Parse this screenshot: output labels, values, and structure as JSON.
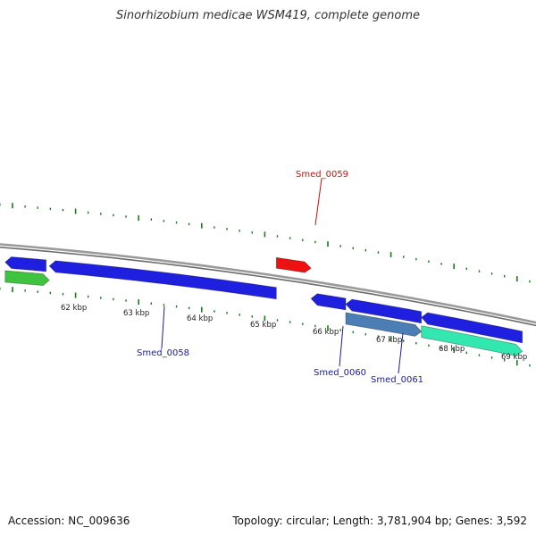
{
  "title": "Sinorhizobium medicae WSM419, complete genome",
  "footer": {
    "accession": "Accession: NC_009636",
    "topology": "Topology: circular; Length: 3,781,904 bp; Genes: 3,592"
  },
  "colors": {
    "backbone": "#8a8a8a",
    "tick": "#1a7a1a",
    "gene_blue": "#1f1fe0",
    "gene_red": "#ee1111",
    "gene_steel": "#4a7eb5",
    "gene_green": "#3ec43e",
    "gene_aqua": "#33e8b0",
    "label_blue": "#1a1aa8",
    "label_red": "#cc1111"
  },
  "kbp_labels": [
    {
      "text": "62 kbp",
      "kbp": 62
    },
    {
      "text": "63 kbp",
      "kbp": 63
    },
    {
      "text": "64 kbp",
      "kbp": 64
    },
    {
      "text": "65 kbp",
      "kbp": 65
    },
    {
      "text": "66 kbp",
      "kbp": 66
    },
    {
      "text": "67 kbp",
      "kbp": 67
    },
    {
      "text": "68 kbp",
      "kbp": 68
    },
    {
      "text": "69 kbp",
      "kbp": 69
    }
  ],
  "genes": [
    {
      "name": "green-left",
      "start_kbp": 61.1,
      "end_kbp": 61.8,
      "strand": "+",
      "track": "inner2",
      "color_key": "gene_green"
    },
    {
      "name": "blue-left",
      "start_kbp": 61.1,
      "end_kbp": 61.75,
      "strand": "-",
      "track": "inner1",
      "color_key": "gene_blue"
    },
    {
      "name": "Smed_0058",
      "start_kbp": 61.8,
      "end_kbp": 65.4,
      "strand": "-",
      "track": "inner1",
      "color_key": "gene_blue"
    },
    {
      "name": "Smed_0059",
      "start_kbp": 65.4,
      "end_kbp": 65.95,
      "strand": "+",
      "track": "outer",
      "color_key": "gene_red"
    },
    {
      "name": "Smed_0060",
      "start_kbp": 65.95,
      "end_kbp": 66.5,
      "strand": "-",
      "track": "inner1",
      "color_key": "gene_blue"
    },
    {
      "name": "Smed_0061",
      "start_kbp": 66.5,
      "end_kbp": 67.7,
      "strand": "-",
      "track": "inner1",
      "color_key": "gene_blue"
    },
    {
      "name": "steel-gene",
      "start_kbp": 66.5,
      "end_kbp": 67.7,
      "strand": "+",
      "track": "inner2",
      "color_key": "gene_steel"
    },
    {
      "name": "blue-right",
      "start_kbp": 67.7,
      "end_kbp": 69.3,
      "strand": "-",
      "track": "inner1",
      "color_key": "gene_blue"
    },
    {
      "name": "aqua-right",
      "start_kbp": 67.7,
      "end_kbp": 69.3,
      "strand": "+",
      "track": "inner2",
      "color_key": "gene_aqua"
    }
  ],
  "gene_labels": [
    {
      "text": "Smed_0058",
      "color_key": "label_blue"
    },
    {
      "text": "Smed_0059",
      "color_key": "label_red"
    },
    {
      "text": "Smed_0060",
      "color_key": "label_blue"
    },
    {
      "text": "Smed_0061",
      "color_key": "label_blue"
    }
  ]
}
